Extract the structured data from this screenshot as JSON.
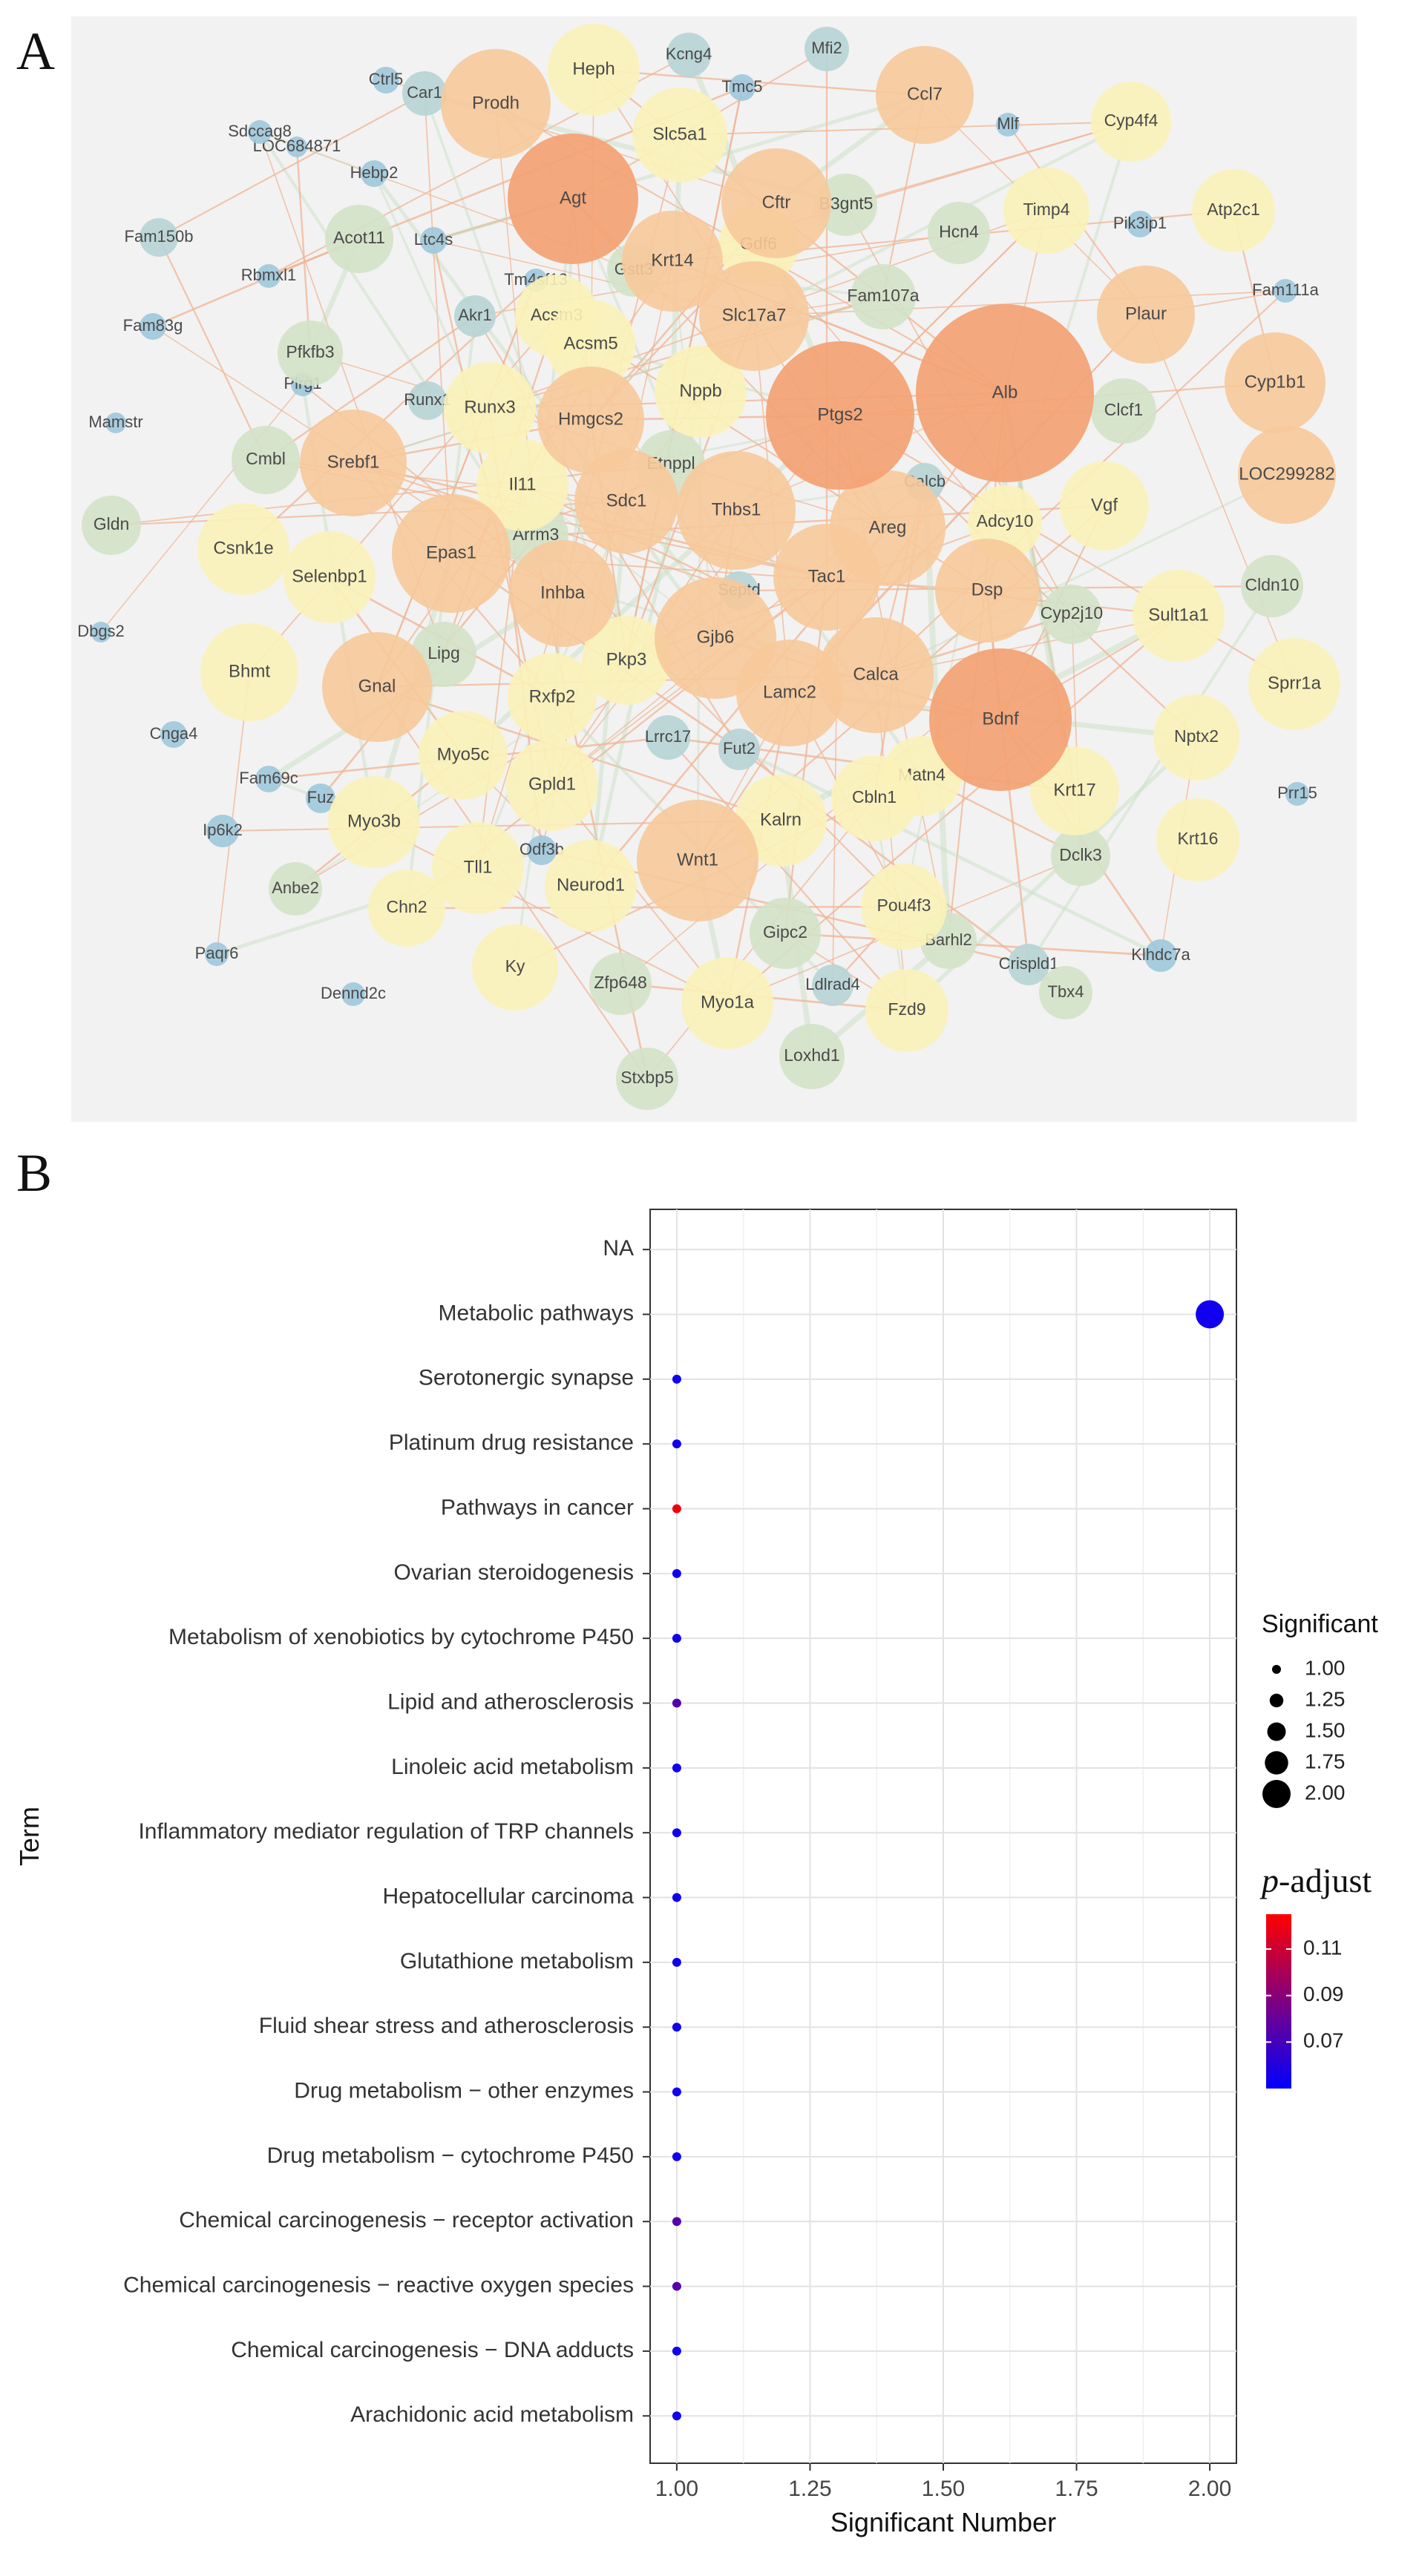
{
  "panel_a_label": "A",
  "panel_b_label": "B",
  "colors": {
    "node_large": "#f4a273",
    "node_orange": "#f7c99a",
    "node_yellow": "#fbf2b8",
    "node_green": "#d3e2c8",
    "node_teal": "#b7d4d6",
    "node_blue": "#9ec8dc",
    "edge_orange": "#f0b493",
    "edge_green": "#c6ddc2",
    "panel_bg": "#f2f2f2",
    "padj_low": "#0000ff",
    "padj_high": "#ff0000"
  },
  "network": {
    "nodes": [
      {
        "label": "Alb",
        "tier": "large"
      },
      {
        "label": "Ptgs2",
        "tier": "large"
      },
      {
        "label": "Bdnf",
        "tier": "large"
      },
      {
        "label": "Agt",
        "tier": "large"
      },
      {
        "label": "Wnt1",
        "tier": "orange"
      },
      {
        "label": "Gjb6",
        "tier": "orange"
      },
      {
        "label": "Thbs1",
        "tier": "orange"
      },
      {
        "label": "Epas1",
        "tier": "orange"
      },
      {
        "label": "Areg",
        "tier": "orange"
      },
      {
        "label": "Calca",
        "tier": "orange"
      },
      {
        "label": "Gnal",
        "tier": "orange"
      },
      {
        "label": "Lamc2",
        "tier": "orange"
      },
      {
        "label": "Inhba",
        "tier": "orange"
      },
      {
        "label": "Prodh",
        "tier": "orange"
      },
      {
        "label": "Hmgcs2",
        "tier": "orange"
      },
      {
        "label": "Cftr",
        "tier": "orange"
      },
      {
        "label": "Tac1",
        "tier": "orange"
      },
      {
        "label": "Srebf1",
        "tier": "orange"
      },
      {
        "label": "Slc17a7",
        "tier": "orange"
      },
      {
        "label": "Sdc1",
        "tier": "orange"
      },
      {
        "label": "Krt14",
        "tier": "orange"
      },
      {
        "label": "Dsp",
        "tier": "orange"
      },
      {
        "label": "Cyp1b1",
        "tier": "orange"
      },
      {
        "label": "LOC299282",
        "tier": "orange"
      },
      {
        "label": "Plaur",
        "tier": "orange"
      },
      {
        "label": "Ccl7",
        "tier": "orange"
      },
      {
        "label": "Heph",
        "tier": "yellow"
      },
      {
        "label": "Slc5a1",
        "tier": "yellow"
      },
      {
        "label": "Timp4",
        "tier": "yellow"
      },
      {
        "label": "Cyp4f4",
        "tier": "yellow"
      },
      {
        "label": "Atp2c1",
        "tier": "yellow"
      },
      {
        "label": "Nppb",
        "tier": "yellow"
      },
      {
        "label": "Runx3",
        "tier": "yellow"
      },
      {
        "label": "Il11",
        "tier": "yellow"
      },
      {
        "label": "Acsm5",
        "tier": "yellow"
      },
      {
        "label": "Acsm3",
        "tier": "yellow"
      },
      {
        "label": "Csnk1e",
        "tier": "yellow"
      },
      {
        "label": "Selenbp1",
        "tier": "yellow"
      },
      {
        "label": "Bhmt",
        "tier": "yellow"
      },
      {
        "label": "Myo5c",
        "tier": "yellow"
      },
      {
        "label": "Rxfp2",
        "tier": "yellow"
      },
      {
        "label": "Pkp3",
        "tier": "yellow"
      },
      {
        "label": "Gpld1",
        "tier": "yellow"
      },
      {
        "label": "Myo3b",
        "tier": "yellow"
      },
      {
        "label": "Tll1",
        "tier": "yellow"
      },
      {
        "label": "Neurod1",
        "tier": "yellow"
      },
      {
        "label": "Kalrn",
        "tier": "yellow"
      },
      {
        "label": "Cbln1",
        "tier": "yellow"
      },
      {
        "label": "Matn4",
        "tier": "yellow"
      },
      {
        "label": "Krt17",
        "tier": "yellow"
      },
      {
        "label": "Nptx2",
        "tier": "yellow"
      },
      {
        "label": "Krt16",
        "tier": "yellow"
      },
      {
        "label": "Sult1a1",
        "tier": "yellow"
      },
      {
        "label": "Sprr1a",
        "tier": "yellow"
      },
      {
        "label": "Vgf",
        "tier": "yellow"
      },
      {
        "label": "Ky",
        "tier": "yellow"
      },
      {
        "label": "Myo1a",
        "tier": "yellow"
      },
      {
        "label": "Fzd9",
        "tier": "yellow"
      },
      {
        "label": "Pou4f3",
        "tier": "yellow"
      },
      {
        "label": "Gdf6",
        "tier": "yellow"
      },
      {
        "label": "Adcy10",
        "tier": "yellow"
      },
      {
        "label": "Chn2",
        "tier": "yellow"
      },
      {
        "label": "Cmbl",
        "tier": "green"
      },
      {
        "label": "Pfkfb3",
        "tier": "green"
      },
      {
        "label": "Acot11",
        "tier": "green"
      },
      {
        "label": "Etnppl",
        "tier": "green"
      },
      {
        "label": "Arrm3",
        "tier": "green"
      },
      {
        "label": "Lipg",
        "tier": "green"
      },
      {
        "label": "Clcf1",
        "tier": "green"
      },
      {
        "label": "Cldn10",
        "tier": "green"
      },
      {
        "label": "Gldn",
        "tier": "green"
      },
      {
        "label": "Hcn4",
        "tier": "green"
      },
      {
        "label": "B3gnt5",
        "tier": "green"
      },
      {
        "label": "Fam107a",
        "tier": "green"
      },
      {
        "label": "Gipc2",
        "tier": "green"
      },
      {
        "label": "Loxhd1",
        "tier": "green"
      },
      {
        "label": "Stxbp5",
        "tier": "green"
      },
      {
        "label": "Zfp648",
        "tier": "green"
      },
      {
        "label": "Dclk3",
        "tier": "green"
      },
      {
        "label": "Anbe2",
        "tier": "green"
      },
      {
        "label": "Barhl2",
        "tier": "green"
      },
      {
        "label": "Cyp2j10",
        "tier": "green"
      },
      {
        "label": "Gstt3",
        "tier": "green"
      },
      {
        "label": "Tbx4",
        "tier": "green"
      },
      {
        "label": "Kcng4",
        "tier": "teal"
      },
      {
        "label": "Mfi2",
        "tier": "teal"
      },
      {
        "label": "Car1",
        "tier": "teal"
      },
      {
        "label": "Lrrc17",
        "tier": "teal"
      },
      {
        "label": "Fut2",
        "tier": "teal"
      },
      {
        "label": "Septd",
        "tier": "teal"
      },
      {
        "label": "Crispld1",
        "tier": "teal"
      },
      {
        "label": "Ldlrad4",
        "tier": "teal"
      },
      {
        "label": "Akr1",
        "tier": "teal"
      },
      {
        "label": "Runx1",
        "tier": "teal"
      },
      {
        "label": "Calcb",
        "tier": "teal"
      },
      {
        "label": "Fam150b",
        "tier": "teal"
      },
      {
        "label": "Ctrl5",
        "tier": "blue"
      },
      {
        "label": "Tmc5",
        "tier": "blue"
      },
      {
        "label": "Mlf",
        "tier": "blue"
      },
      {
        "label": "Sdccag8",
        "tier": "blue"
      },
      {
        "label": "LOC684871",
        "tier": "blue"
      },
      {
        "label": "Hebp2",
        "tier": "blue"
      },
      {
        "label": "Pik3ip1",
        "tier": "blue"
      },
      {
        "label": "Ltc4s",
        "tier": "blue"
      },
      {
        "label": "Rbmxl1",
        "tier": "blue"
      },
      {
        "label": "Tm4sf13",
        "tier": "blue"
      },
      {
        "label": "Fam111a",
        "tier": "blue"
      },
      {
        "label": "Fam83g",
        "tier": "blue"
      },
      {
        "label": "Plrg1",
        "tier": "blue"
      },
      {
        "label": "Mamstr",
        "tier": "blue"
      },
      {
        "label": "Dbgs2",
        "tier": "blue"
      },
      {
        "label": "Cnga4",
        "tier": "blue"
      },
      {
        "label": "Fam69c",
        "tier": "blue"
      },
      {
        "label": "Fuz",
        "tier": "blue"
      },
      {
        "label": "Ip6k2",
        "tier": "blue"
      },
      {
        "label": "Odf3b",
        "tier": "blue"
      },
      {
        "label": "Paqr6",
        "tier": "blue"
      },
      {
        "label": "Dennd2c",
        "tier": "blue"
      },
      {
        "label": "Klhdc7a",
        "tier": "blue"
      },
      {
        "label": "Prr15",
        "tier": "blue"
      }
    ]
  },
  "chart_data": {
    "type": "scatter",
    "xlabel": "Significant Number",
    "ylabel": "Term",
    "xlim": [
      0.95,
      2.05
    ],
    "x_ticks": [
      "1.00",
      "1.25",
      "1.50",
      "1.75",
      "2.00"
    ],
    "x_tick_values": [
      1.0,
      1.25,
      1.5,
      1.75,
      2.0
    ],
    "categories": [
      "NA",
      "Metabolic pathways",
      "Serotonergic synapse",
      "Platinum drug resistance",
      "Pathways in cancer",
      "Ovarian steroidogenesis",
      "Metabolism of xenobiotics by cytochrome P450",
      "Lipid and atherosclerosis",
      "Linoleic acid metabolism",
      "Inflammatory mediator regulation of TRP channels",
      "Hepatocellular carcinoma",
      "Glutathione metabolism",
      "Fluid shear stress and atherosclerosis",
      "Drug metabolism − other enzymes",
      "Drug metabolism − cytochrome P450",
      "Chemical carcinogenesis − receptor activation",
      "Chemical carcinogenesis − reactive oxygen species",
      "Chemical carcinogenesis − DNA adducts",
      "Arachidonic acid metabolism"
    ],
    "values": [
      null,
      2,
      1,
      1,
      1,
      1,
      1,
      1,
      1,
      1,
      1,
      1,
      1,
      1,
      1,
      1,
      1,
      1,
      1
    ],
    "p_adjust": [
      null,
      0.055,
      0.055,
      0.055,
      0.12,
      0.055,
      0.055,
      0.075,
      0.055,
      0.055,
      0.055,
      0.055,
      0.055,
      0.055,
      0.055,
      0.075,
      0.075,
      0.055,
      0.055
    ],
    "size_legend": {
      "title": "Significant",
      "labels": [
        "1.00",
        "1.25",
        "1.50",
        "1.75",
        "2.00"
      ],
      "values": [
        1.0,
        1.25,
        1.5,
        1.75,
        2.0
      ]
    },
    "color_legend": {
      "title_italic": "p",
      "title_rest": "-adjust",
      "labels": [
        "0.11",
        "0.09",
        "0.07"
      ],
      "values": [
        0.11,
        0.09,
        0.07
      ],
      "range": [
        0.05,
        0.125
      ]
    },
    "grid": true
  }
}
